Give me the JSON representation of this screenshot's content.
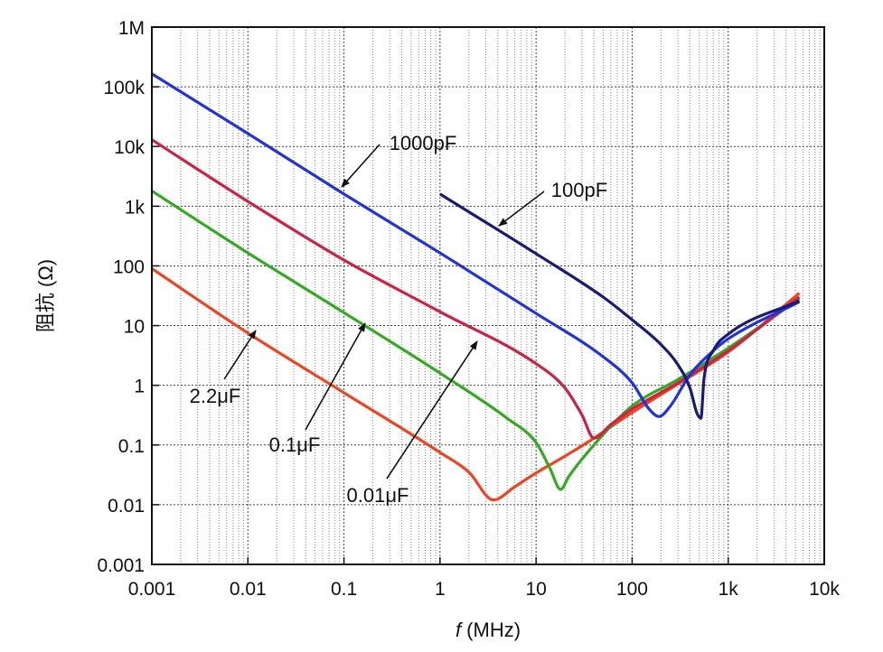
{
  "chart_data": {
    "type": "line",
    "xlabel_italic": "f",
    "xlabel": " (MHz)",
    "ylabel": "阻抗 (Ω)",
    "x_scale": "log",
    "y_scale": "log",
    "xlim": [
      0.001,
      10000
    ],
    "ylim": [
      0.001,
      1000000
    ],
    "x_ticks": [
      {
        "value": 0.001,
        "label": "0.001"
      },
      {
        "value": 0.01,
        "label": "0.01"
      },
      {
        "value": 0.1,
        "label": "0.1"
      },
      {
        "value": 1,
        "label": "1"
      },
      {
        "value": 10,
        "label": "10"
      },
      {
        "value": 100,
        "label": "100"
      },
      {
        "value": 1000,
        "label": "1k"
      },
      {
        "value": 10000,
        "label": "10k"
      }
    ],
    "y_ticks": [
      {
        "value": 0.001,
        "label": "0.001"
      },
      {
        "value": 0.01,
        "label": "0.01"
      },
      {
        "value": 0.1,
        "label": "0.1"
      },
      {
        "value": 1,
        "label": "1"
      },
      {
        "value": 10,
        "label": "10"
      },
      {
        "value": 100,
        "label": "100"
      },
      {
        "value": 1000,
        "label": "1k"
      },
      {
        "value": 10000,
        "label": "10k"
      },
      {
        "value": 100000,
        "label": "100k"
      },
      {
        "value": 1000000,
        "label": "1M"
      }
    ],
    "grid": true,
    "series": [
      {
        "name": "2.2μF",
        "color": "#ee4422",
        "x": [
          0.001,
          0.01,
          0.1,
          1,
          2,
          3.6,
          6,
          10,
          20,
          40,
          100,
          300,
          1000,
          5500
        ],
        "y": [
          90,
          7.5,
          0.75,
          0.075,
          0.035,
          0.012,
          0.02,
          0.034,
          0.065,
          0.13,
          0.35,
          1.05,
          3.6,
          35
        ]
      },
      {
        "name": "0.1μF",
        "color": "#33aa22",
        "x": [
          0.001,
          0.01,
          0.1,
          1,
          5,
          10,
          14,
          18,
          22,
          40,
          100,
          300,
          1000,
          5500
        ],
        "y": [
          1800,
          165,
          16.5,
          1.6,
          0.28,
          0.11,
          0.04,
          0.018,
          0.03,
          0.1,
          0.45,
          1.25,
          4.2,
          28
        ]
      },
      {
        "name": "0.01μF",
        "color": "#cc2244",
        "x": [
          0.001,
          0.01,
          0.1,
          1,
          10,
          20,
          30,
          40,
          60,
          100,
          300,
          1000,
          5500
        ],
        "y": [
          13000,
          1200,
          125,
          17,
          2.3,
          0.9,
          0.32,
          0.13,
          0.22,
          0.4,
          1.1,
          3.8,
          30
        ]
      },
      {
        "name": "1000pF",
        "color": "#2233dd",
        "x": [
          0.001,
          0.01,
          0.1,
          1,
          10,
          50,
          100,
          150,
          190,
          250,
          400,
          700,
          1000,
          5500
        ],
        "y": [
          165000,
          16500,
          1600,
          165,
          16,
          3,
          1.1,
          0.4,
          0.3,
          0.45,
          1.5,
          3.8,
          6,
          25
        ]
      },
      {
        "name": "100pF",
        "color": "#1a1a77",
        "x": [
          1,
          10,
          50,
          100,
          200,
          300,
          400,
          470,
          520,
          560,
          700,
          1000,
          5500
        ],
        "y": [
          1600,
          160,
          30,
          12.5,
          4.8,
          2.2,
          0.9,
          0.35,
          0.28,
          1.3,
          3.8,
          7.2,
          26
        ]
      }
    ],
    "annotations": [
      {
        "text": "2.2μF",
        "points_to": "2.2μF"
      },
      {
        "text": "0.1μF",
        "points_to": "0.1μF"
      },
      {
        "text": "0.01μF",
        "points_to": "0.01μF"
      },
      {
        "text": "1000pF",
        "points_to": "1000pF"
      },
      {
        "text": "100pF",
        "points_to": "100pF"
      }
    ]
  }
}
